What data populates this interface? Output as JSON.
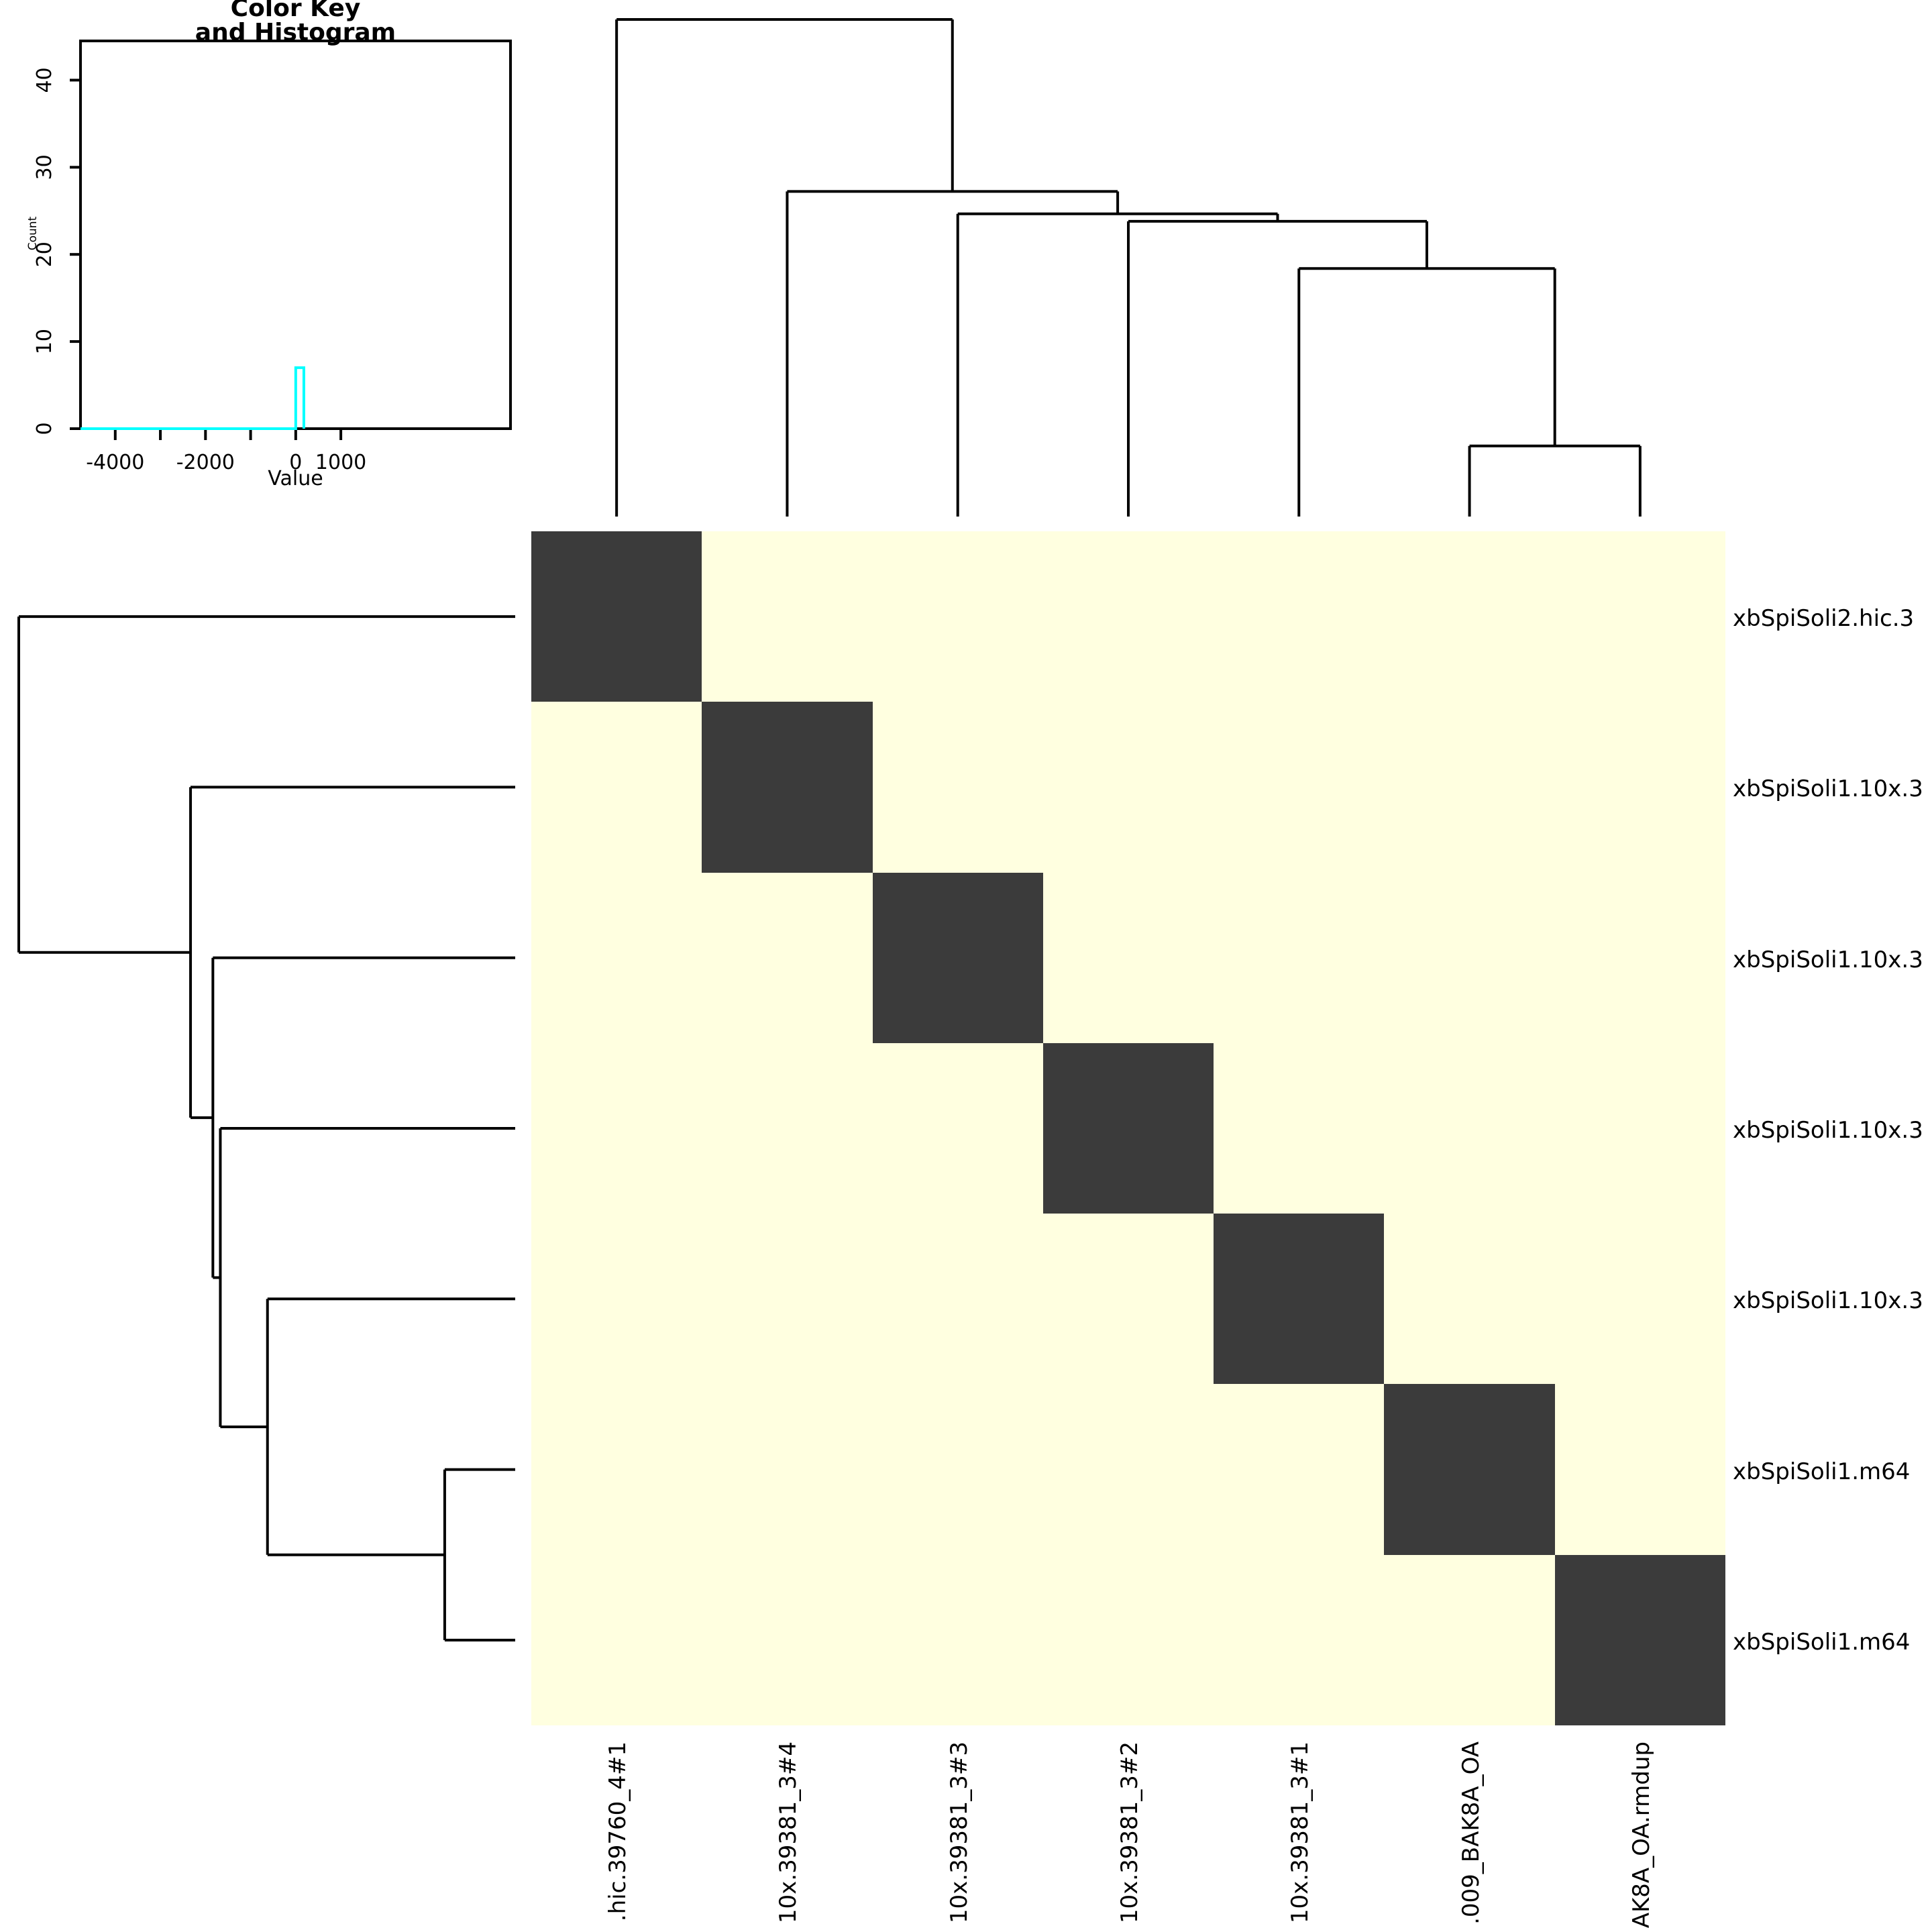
{
  "figure": {
    "background": "#ffffff",
    "line_color": "#000000"
  },
  "chart_data": [
    {
      "type": "histogram",
      "name": "color-key",
      "title_line1": "Color Key",
      "title_line2": "and Histogram",
      "xlabel": "Value",
      "ylabel": "Count",
      "xlim": [
        -4770,
        4760
      ],
      "ylim": [
        0,
        44.5
      ],
      "xticks": [
        -4000,
        -3000,
        -2000,
        -1000,
        0,
        1000
      ],
      "xtick_labels": [
        "-4000",
        "",
        "-2000",
        "",
        "0",
        "1000"
      ],
      "yticks": [
        0,
        10,
        20,
        30,
        40
      ],
      "grid": false,
      "trace": {
        "color": "#00ffff",
        "baseline_count": 0,
        "baseline_from": -4770,
        "baseline_to": 0,
        "spike_value": 0,
        "spike_count": 7,
        "spike_bin_width": 180
      }
    },
    {
      "type": "heatmap",
      "name": "sample-correlation-heatmap",
      "row_labels": [
        "xbSpiSoli2.hic.3",
        "xbSpiSoli1.10x.3",
        "xbSpiSoli1.10x.3",
        "xbSpiSoli1.10x.3",
        "xbSpiSoli1.10x.3",
        "xbSpiSoli1.m64",
        "xbSpiSoli1.m64"
      ],
      "col_labels": [
        ".hic.39760_4#1",
        "10x.39381_3#4",
        "10x.39381_3#3",
        "10x.39381_3#2",
        "10x.39381_3#1",
        ".009_BAK8A_OA",
        "AK8A_OA.rmdup"
      ],
      "matrix": [
        [
          1,
          0,
          0,
          0,
          0,
          0,
          0
        ],
        [
          0,
          1,
          0,
          0,
          0,
          0,
          0
        ],
        [
          0,
          0,
          1,
          0,
          0,
          0,
          0
        ],
        [
          0,
          0,
          0,
          1,
          0,
          0,
          0
        ],
        [
          0,
          0,
          0,
          0,
          1,
          0,
          0
        ],
        [
          0,
          0,
          0,
          0,
          0,
          1,
          0
        ],
        [
          0,
          0,
          0,
          0,
          0,
          0,
          1
        ]
      ],
      "colors": {
        "diagonal": "#3b3b3b",
        "off_diagonal": "#ffffe0"
      }
    },
    {
      "type": "dendrogram",
      "orientation": "top",
      "name": "column-dendrogram",
      "tree": {
        "h": 1.0,
        "c": [
          {
            "leaf": 0
          },
          {
            "h": 0.654,
            "c": [
              {
                "leaf": 1
              },
              {
                "h": 0.609,
                "c": [
                  {
                    "leaf": 2
                  },
                  {
                    "h": 0.594,
                    "c": [
                      {
                        "leaf": 3
                      },
                      {
                        "h": 0.499,
                        "c": [
                          {
                            "leaf": 4
                          },
                          {
                            "h": 0.142,
                            "c": [
                              {
                                "leaf": 5
                              },
                              {
                                "leaf": 6
                              }
                            ]
                          }
                        ]
                      }
                    ]
                  }
                ]
              }
            ]
          }
        ]
      }
    },
    {
      "type": "dendrogram",
      "orientation": "left",
      "name": "row-dendrogram",
      "tree": {
        "h": 1.0,
        "c": [
          {
            "leaf": 0
          },
          {
            "h": 0.654,
            "c": [
              {
                "leaf": 1
              },
              {
                "h": 0.609,
                "c": [
                  {
                    "leaf": 2
                  },
                  {
                    "h": 0.594,
                    "c": [
                      {
                        "leaf": 3
                      },
                      {
                        "h": 0.499,
                        "c": [
                          {
                            "leaf": 4
                          },
                          {
                            "h": 0.142,
                            "c": [
                              {
                                "leaf": 5
                              },
                              {
                                "leaf": 6
                              }
                            ]
                          }
                        ]
                      }
                    ]
                  }
                ]
              }
            ]
          }
        ]
      }
    }
  ]
}
